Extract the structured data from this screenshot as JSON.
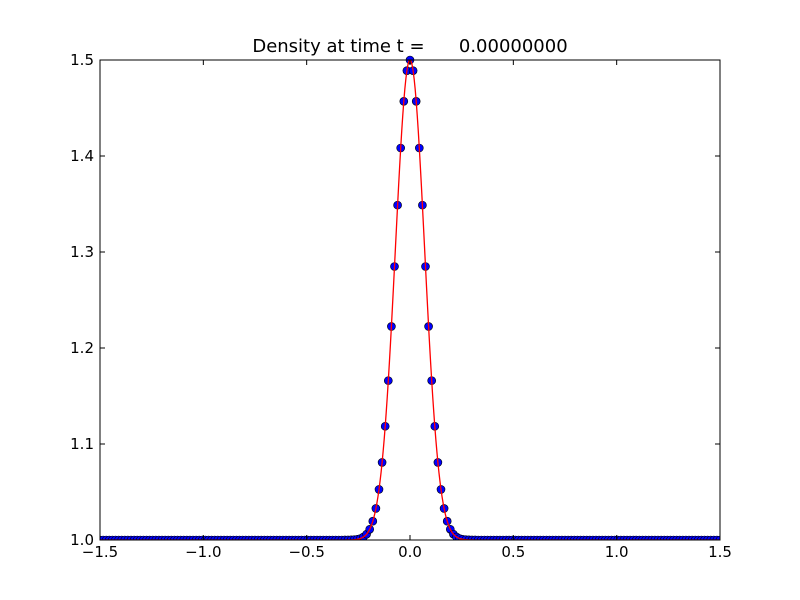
{
  "chart_data": {
    "type": "scatter",
    "title": "Density at time t =      0.00000000",
    "xlabel": "",
    "ylabel": "",
    "xlim": [
      -1.5,
      1.5
    ],
    "ylim": [
      1.0,
      1.5
    ],
    "grid": false,
    "x_ticks": [
      -1.5,
      -1.0,
      -0.5,
      0.0,
      0.5,
      1.0,
      1.5
    ],
    "x_tick_labels": [
      "−1.5",
      "−1.0",
      "−0.5",
      "0.0",
      "0.5",
      "1.0",
      "1.5"
    ],
    "y_ticks": [
      1.0,
      1.1,
      1.2,
      1.3,
      1.4,
      1.5
    ],
    "y_tick_labels": [
      "1.0",
      "1.1",
      "1.2",
      "1.3",
      "1.4",
      "1.5"
    ],
    "series": [
      {
        "kind": "markers",
        "marker_color": "#0000ff",
        "marker_edge": "#000000",
        "gaussian_peak": 1.5,
        "gaussian_base": 1.0,
        "gaussian_center": 0.0,
        "gaussian_width": 0.1,
        "x_min": -1.5,
        "x_max": 1.5,
        "point_count": 201
      },
      {
        "kind": "line",
        "line_color": "#ff0000",
        "gaussian_peak": 1.5,
        "gaussian_base": 1.0,
        "gaussian_center": 0.0,
        "gaussian_width": 0.1,
        "x_min": -1.5,
        "x_max": 1.5
      }
    ]
  }
}
